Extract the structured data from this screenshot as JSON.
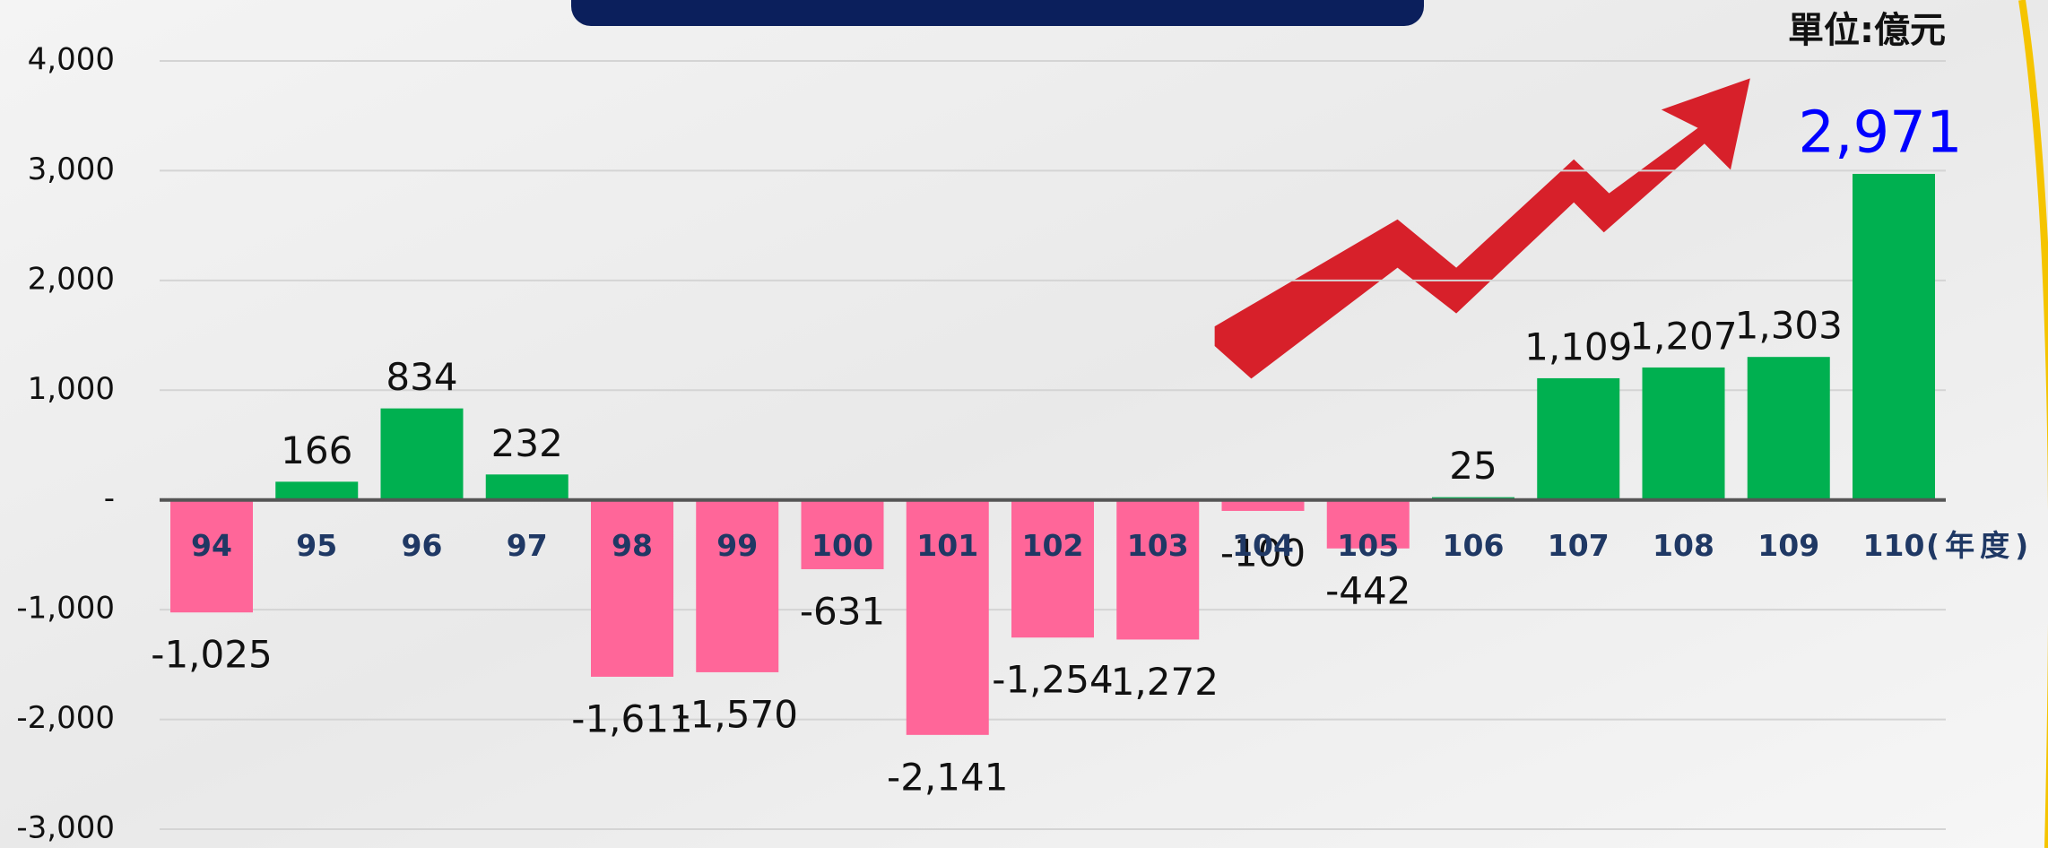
{
  "chart_data": {
    "type": "bar",
    "unit": "單位:億元",
    "x_suffix": "(年度)",
    "categories": [
      "94",
      "95",
      "96",
      "97",
      "98",
      "99",
      "100",
      "101",
      "102",
      "103",
      "104",
      "105",
      "106",
      "107",
      "108",
      "109",
      "110"
    ],
    "values": [
      -1025,
      166,
      834,
      232,
      -1611,
      -1570,
      -631,
      -2141,
      -1254,
      -1272,
      -100,
      -442,
      25,
      1109,
      1207,
      1303,
      2971
    ],
    "value_labels": [
      "-1,025",
      "166",
      "834",
      "232",
      "-1,611",
      "-1,570",
      "-631",
      "-2,141",
      "-1,254",
      "-1,272",
      "-100",
      "-442",
      "25",
      "1,109",
      "1,207",
      "1,303",
      "2,971"
    ],
    "positive_color": "#00b050",
    "negative_color": "#ff6699",
    "highlight_color": "#0000ff",
    "ylim": [
      -3000,
      4000
    ],
    "yticks": [
      {
        "value": -3000,
        "label": "-3,000"
      },
      {
        "value": -2000,
        "label": "-2,000"
      },
      {
        "value": -1000,
        "label": "-1,000"
      },
      {
        "value": 0,
        "label": "-"
      },
      {
        "value": 1000,
        "label": "1,000"
      },
      {
        "value": 2000,
        "label": "2,000"
      },
      {
        "value": 3000,
        "label": "3,000"
      },
      {
        "value": 4000,
        "label": "4,000"
      }
    ],
    "grid": true
  }
}
